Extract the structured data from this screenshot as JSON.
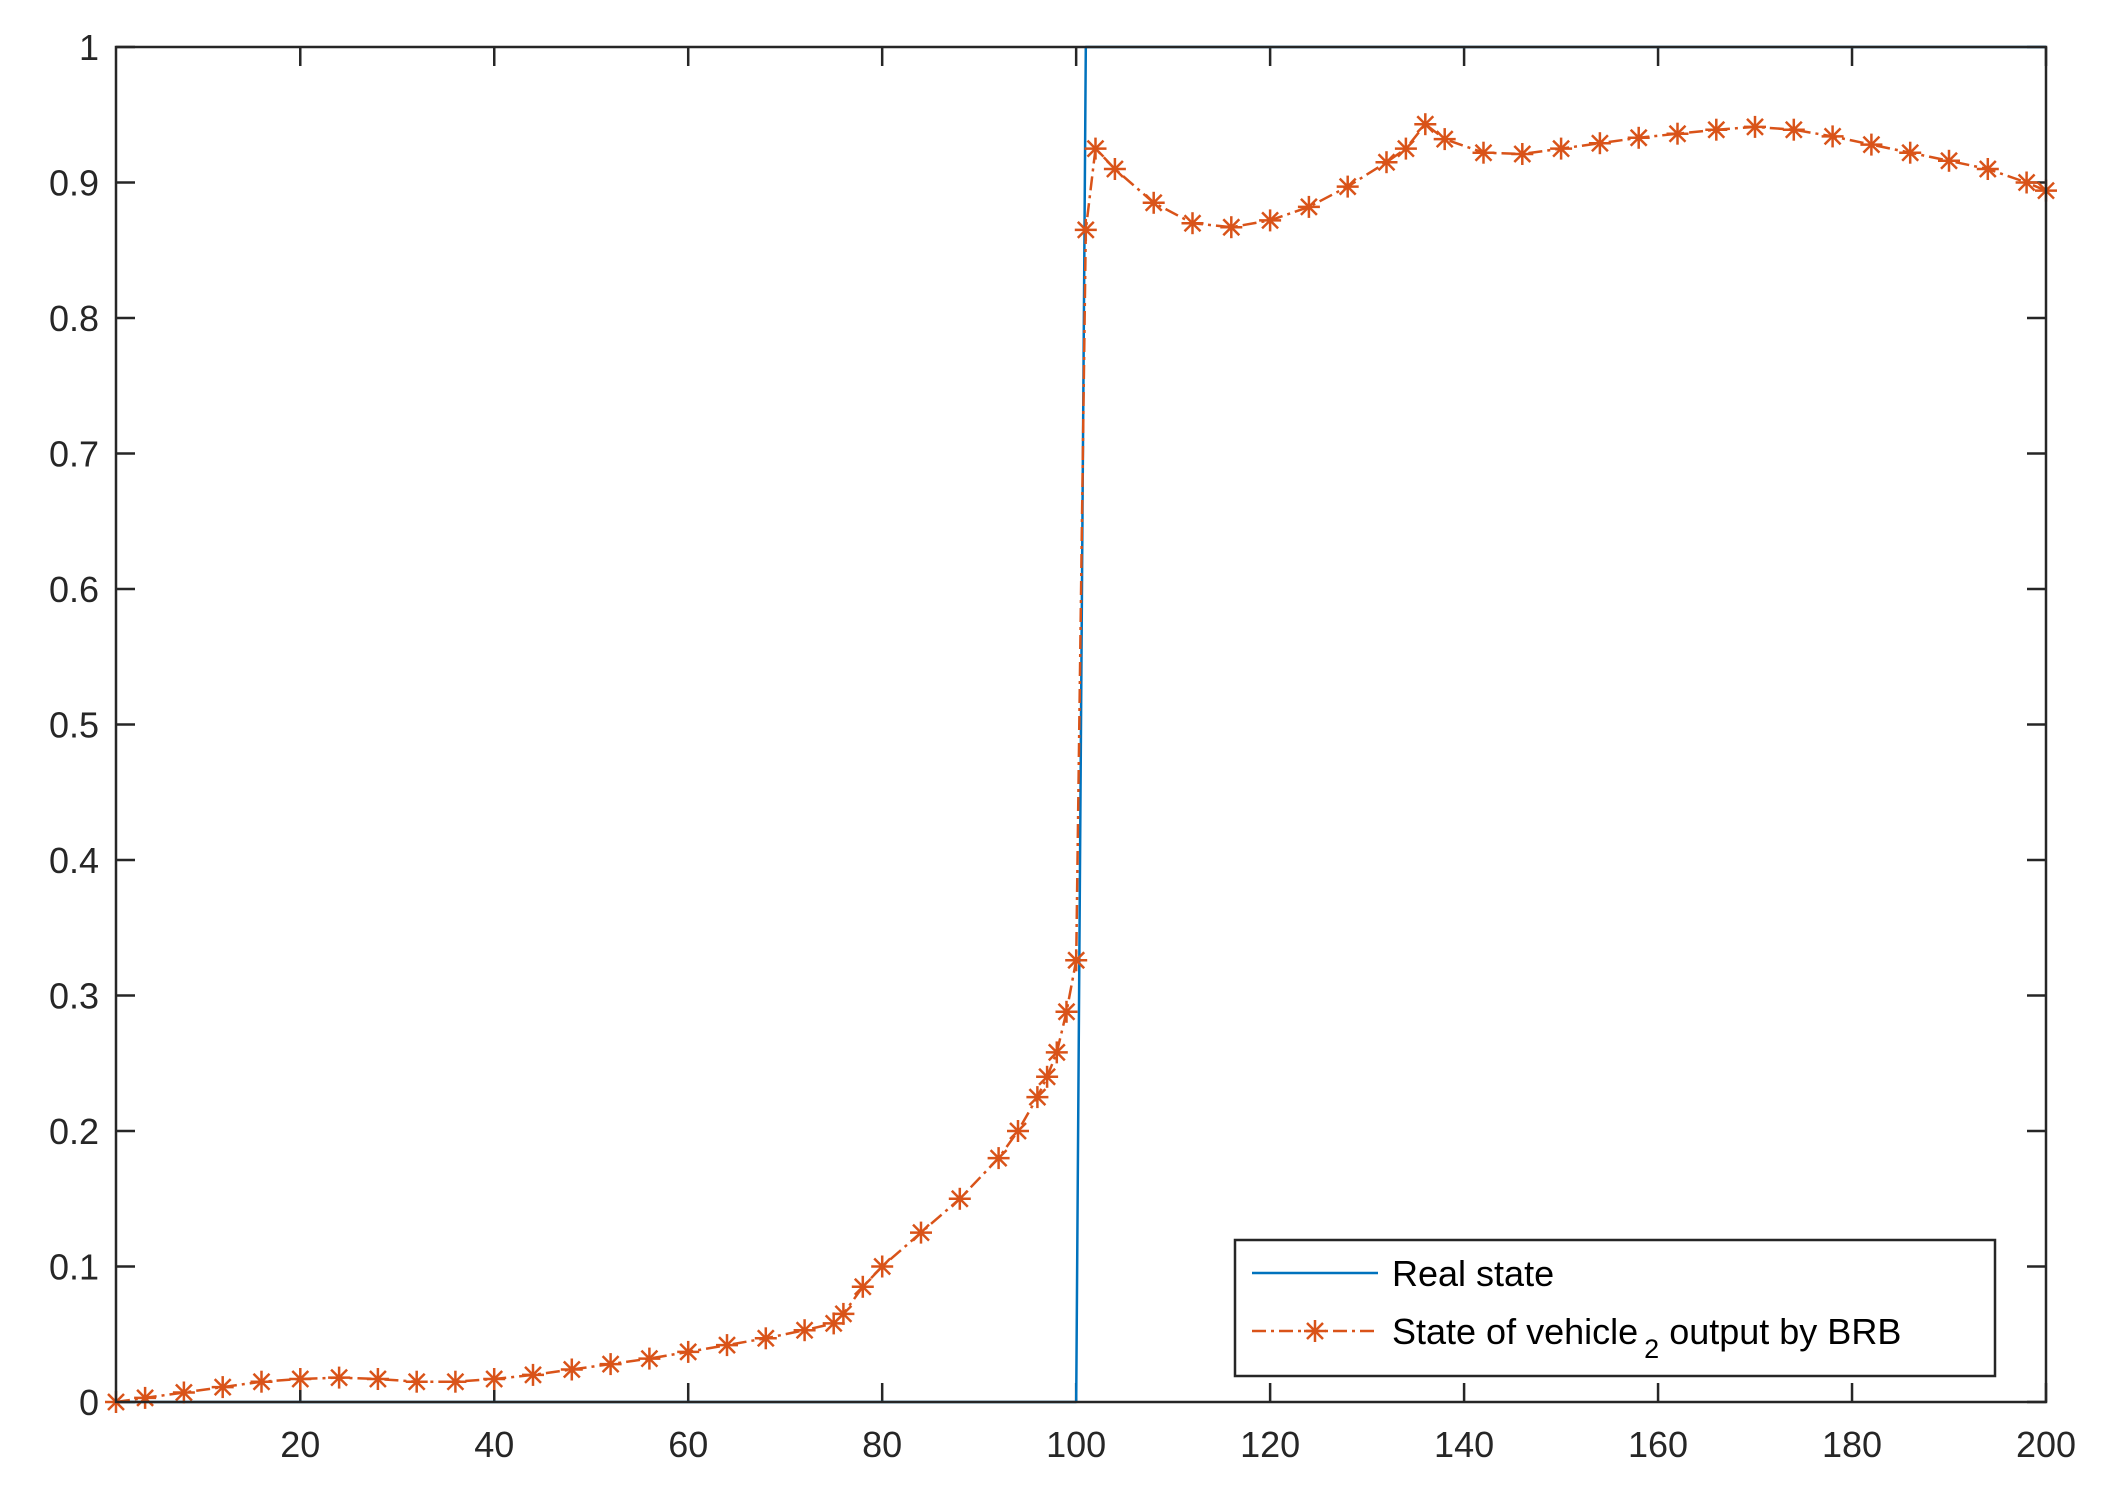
{
  "chart_data": {
    "type": "line",
    "title": "",
    "xlabel": "",
    "ylabel": "",
    "xlim": [
      1,
      200
    ],
    "ylim": [
      0,
      1
    ],
    "x_ticks": [
      20,
      40,
      60,
      80,
      100,
      120,
      140,
      160,
      180,
      200
    ],
    "x_tick_labels": [
      "20",
      "40",
      "60",
      "80",
      "100",
      "120",
      "140",
      "160",
      "180",
      "200"
    ],
    "y_ticks": [
      0,
      0.1,
      0.2,
      0.3,
      0.4,
      0.5,
      0.6,
      0.7,
      0.8,
      0.9,
      1
    ],
    "y_tick_labels": [
      "0",
      "0.1",
      "0.2",
      "0.3",
      "0.4",
      "0.5",
      "0.6",
      "0.7",
      "0.8",
      "0.9",
      "1"
    ],
    "grid": false,
    "box": true,
    "legend": {
      "placement": "bottom-right",
      "entries": [
        {
          "label": "Real state",
          "subscript": "",
          "suffix": ""
        },
        {
          "label": "State of vehicle",
          "subscript": "2",
          "suffix": " output by BRB"
        }
      ]
    },
    "series": [
      {
        "name": "Real state",
        "color": "#0072BD",
        "style": "solid",
        "marker": "none",
        "x": [
          1,
          100,
          101,
          200
        ],
        "y": [
          0,
          0,
          1,
          1
        ]
      },
      {
        "name": "State of vehicle2 output by BRB",
        "color": "#D95319",
        "style": "dash-dot",
        "marker": "asterisk",
        "x": [
          1,
          4,
          8,
          12,
          16,
          20,
          24,
          28,
          32,
          36,
          40,
          44,
          48,
          52,
          56,
          60,
          64,
          68,
          72,
          75,
          76,
          78,
          80,
          84,
          88,
          92,
          94,
          96,
          97,
          98,
          99,
          100,
          101,
          102,
          104,
          108,
          112,
          116,
          120,
          124,
          128,
          132,
          134,
          136,
          138,
          142,
          146,
          150,
          154,
          158,
          162,
          166,
          170,
          174,
          178,
          182,
          186,
          190,
          194,
          198,
          200
        ],
        "y": [
          0.0,
          0.003,
          0.007,
          0.011,
          0.015,
          0.017,
          0.018,
          0.017,
          0.015,
          0.015,
          0.017,
          0.02,
          0.024,
          0.028,
          0.032,
          0.037,
          0.042,
          0.047,
          0.053,
          0.058,
          0.065,
          0.085,
          0.1,
          0.125,
          0.15,
          0.18,
          0.2,
          0.225,
          0.24,
          0.258,
          0.288,
          0.326,
          0.865,
          0.925,
          0.91,
          0.885,
          0.87,
          0.867,
          0.872,
          0.882,
          0.897,
          0.915,
          0.925,
          0.943,
          0.932,
          0.922,
          0.921,
          0.925,
          0.929,
          0.933,
          0.936,
          0.939,
          0.941,
          0.939,
          0.934,
          0.928,
          0.922,
          0.916,
          0.91,
          0.9,
          0.894
        ]
      }
    ]
  }
}
